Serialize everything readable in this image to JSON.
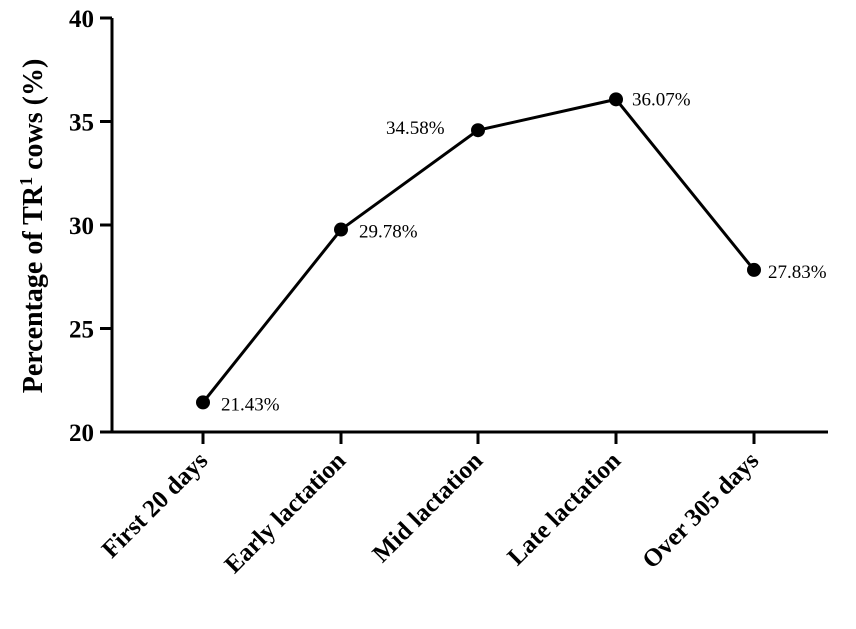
{
  "chart_data": {
    "type": "line",
    "categories": [
      "First 20 days",
      "Early lactation",
      "Mid lactation",
      "Late lactation",
      "Over 305 days"
    ],
    "values": [
      21.43,
      29.78,
      34.58,
      36.07,
      27.83
    ],
    "data_labels": [
      "21.43%",
      "29.78%",
      "34.58%",
      "36.07%",
      "27.83%"
    ],
    "ylabel_main": "Percentage of TR",
    "ylabel_sup": "1",
    "ylabel_tail": " cows (%)",
    "ylim": [
      20,
      40
    ],
    "yticks": [
      20,
      25,
      30,
      35,
      40
    ],
    "grid": false,
    "line_color": "#000000",
    "marker_color": "#000000"
  }
}
